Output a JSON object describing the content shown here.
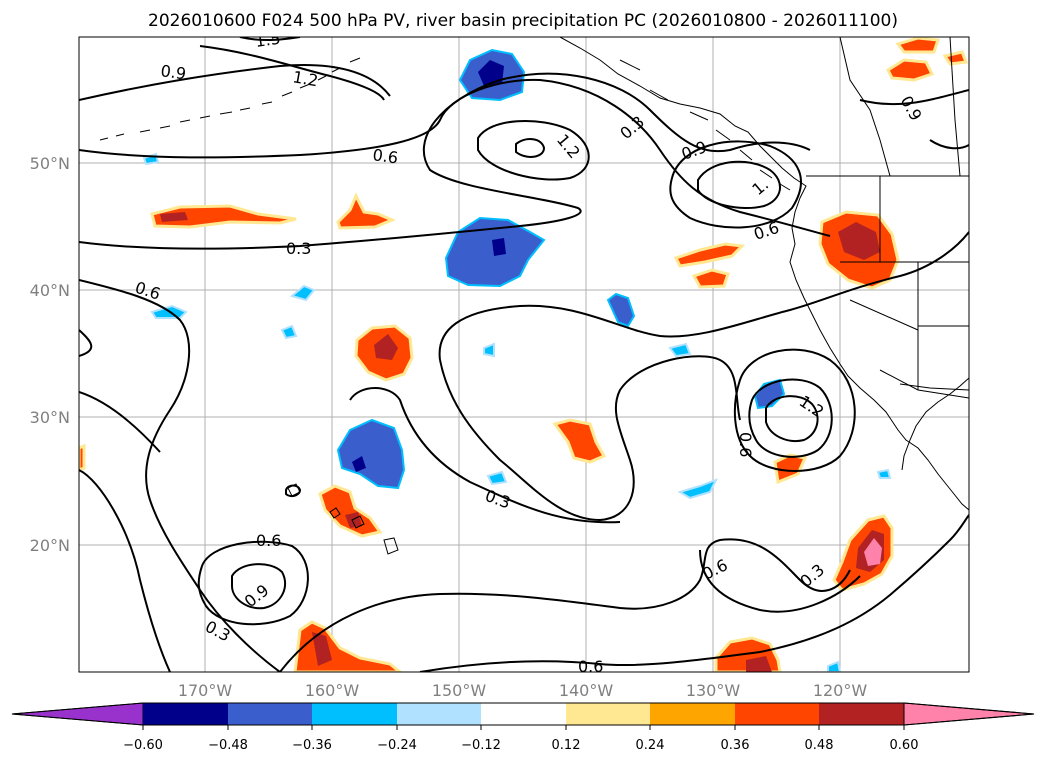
{
  "figure": {
    "title": "2026010600 F024 500 hPa PV, river basin precipitation PC (2026010800 - 2026011100)"
  },
  "map": {
    "lat_labels": [
      "50°N",
      "40°N",
      "30°N",
      "20°N"
    ],
    "lon_labels": [
      "170°W",
      "160°W",
      "150°W",
      "140°W",
      "130°W",
      "120°W"
    ],
    "contour_labels": [
      "1.5",
      "0.9",
      "1.2",
      "0.3",
      "0.6",
      "1.2",
      "0.9",
      "1.",
      "0.6",
      "0.6",
      "0.3",
      "0.6",
      "0.6",
      "0.9",
      "1.2",
      "0.3",
      "0.6",
      "0.9",
      "0.3",
      "0.3",
      "0.6",
      "0.3",
      "0.6",
      "0.9"
    ]
  },
  "colorbar": {
    "ticks": [
      "−0.60",
      "−0.48",
      "−0.36",
      "−0.24",
      "−0.12",
      "0.12",
      "0.24",
      "0.36",
      "0.48",
      "0.60"
    ],
    "colors": [
      "#9932cc",
      "#00008b",
      "#3a5fcd",
      "#00bfff",
      "#b0e2ff",
      "#ffffff",
      "#ffe891",
      "#ffa500",
      "#ff4500",
      "#b22222",
      "#ff82ab"
    ]
  }
}
